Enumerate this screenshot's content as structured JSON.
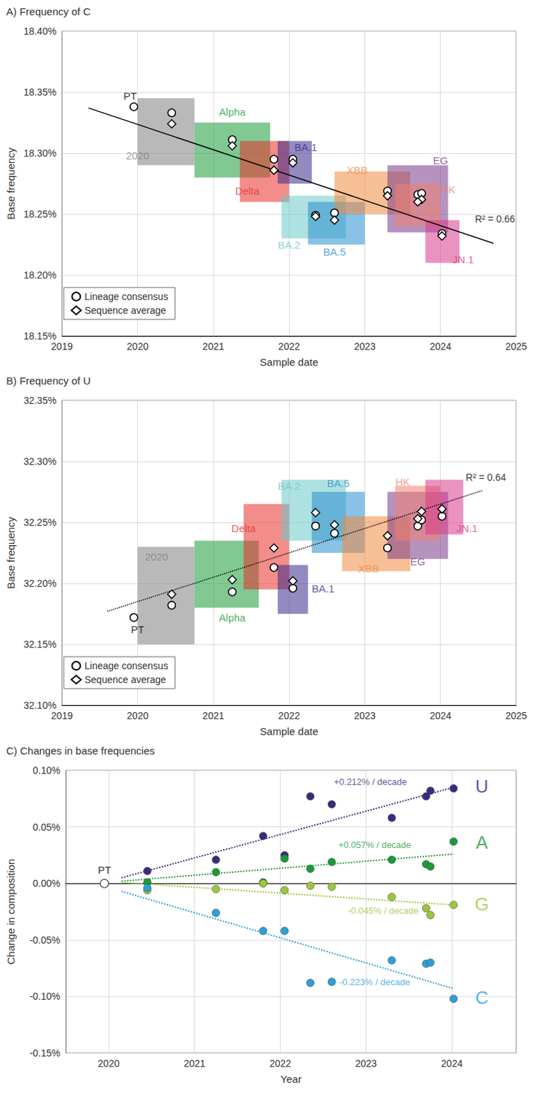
{
  "chart_data": [
    {
      "type": "scatter",
      "title": "A) Frequency of C",
      "x_label": "Sample date",
      "y_label": "Base frequency",
      "xlim": [
        2019,
        2025
      ],
      "xticks": [
        2019,
        2020,
        2021,
        2022,
        2023,
        2024,
        2025
      ],
      "ylim": [
        18.15,
        18.4
      ],
      "yticks": [
        {
          "value": 18.15,
          "label": "18.15%"
        },
        {
          "value": 18.2,
          "label": "18.20%"
        },
        {
          "value": 18.25,
          "label": "18.25%"
        },
        {
          "value": 18.3,
          "label": "18.30%"
        },
        {
          "value": 18.35,
          "label": "18.35%"
        },
        {
          "value": 18.4,
          "label": "18.40%"
        }
      ],
      "grid": true,
      "legend": "lower left",
      "series": [
        {
          "name": "Lineage consensus",
          "marker": "circle"
        },
        {
          "name": "Sequence average",
          "marker": "diamond"
        }
      ],
      "trend": {
        "line_style": "solid",
        "points": [
          [
            2019.35,
            18.337
          ],
          [
            2024.7,
            18.226
          ]
        ],
        "label": "R² = 0.66",
        "label_at": [
          2024.72,
          18.246
        ]
      },
      "lineages": [
        {
          "name": "PT",
          "color": "#000000",
          "consensus": [
            2019.95,
            18.338
          ],
          "label_at": [
            2019.9,
            18.347
          ]
        },
        {
          "name": "2020",
          "color": "#808080",
          "cloud": [
            2020.0,
            2020.75,
            18.29,
            18.345
          ],
          "consensus": [
            2020.45,
            18.333
          ],
          "average": [
            2020.45,
            18.324
          ],
          "label_at": [
            2020.0,
            18.298
          ]
        },
        {
          "name": "Alpha",
          "color": "#1a9a3a",
          "cloud": [
            2020.75,
            2021.75,
            18.28,
            18.325
          ],
          "consensus": [
            2021.25,
            18.311
          ],
          "average": [
            2021.25,
            18.306
          ],
          "label_at": [
            2021.25,
            18.334
          ]
        },
        {
          "name": "Delta",
          "color": "#e8302a",
          "cloud": [
            2021.35,
            2022.0,
            18.26,
            18.31
          ],
          "consensus": [
            2021.8,
            18.295
          ],
          "average": [
            2021.8,
            18.286
          ],
          "label_at": [
            2021.45,
            18.269
          ]
        },
        {
          "name": "BA.1",
          "color": "#3a2a8a",
          "cloud": [
            2021.85,
            2022.3,
            18.275,
            18.31
          ],
          "consensus": [
            2022.05,
            18.295
          ],
          "average": [
            2022.05,
            18.292
          ],
          "label_at": [
            2022.22,
            18.305
          ]
        },
        {
          "name": "BA.2",
          "color": "#6cc8c8",
          "cloud": [
            2021.9,
            2022.75,
            18.23,
            18.265
          ],
          "consensus": [
            2022.35,
            18.249
          ],
          "average": [
            2022.35,
            18.248
          ],
          "label_at": [
            2022.0,
            18.225
          ]
        },
        {
          "name": "BA.5",
          "color": "#2a90d0",
          "cloud": [
            2022.25,
            2023.0,
            18.225,
            18.26
          ],
          "consensus": [
            2022.6,
            18.251
          ],
          "average": [
            2022.6,
            18.245
          ],
          "label_at": [
            2022.6,
            18.219
          ]
        },
        {
          "name": "XBB",
          "color": "#f08a40",
          "cloud": [
            2022.6,
            2023.6,
            18.25,
            18.285
          ],
          "consensus": [
            2023.3,
            18.269
          ],
          "average": [
            2023.3,
            18.265
          ],
          "label_at": [
            2022.9,
            18.286
          ]
        },
        {
          "name": "EG",
          "color": "#7a3a8a",
          "cloud": [
            2023.3,
            2024.1,
            18.235,
            18.29
          ],
          "consensus": [
            2023.7,
            18.266
          ],
          "average": [
            2023.75,
            18.262
          ],
          "label_at": [
            2024.0,
            18.294
          ]
        },
        {
          "name": "HK",
          "color": "#f08070",
          "cloud": [
            2023.4,
            2024.0,
            18.24,
            18.275
          ],
          "consensus": [
            2023.75,
            18.267
          ],
          "average": [
            2023.7,
            18.26
          ],
          "label_at": [
            2024.1,
            18.27
          ]
        },
        {
          "name": "JN.1",
          "color": "#d83a8a",
          "cloud": [
            2023.8,
            2024.25,
            18.21,
            18.245
          ],
          "consensus": [
            2024.02,
            18.234
          ],
          "average": [
            2024.02,
            18.232
          ],
          "label_at": [
            2024.3,
            18.213
          ]
        }
      ]
    },
    {
      "type": "scatter",
      "title": "B) Frequency of U",
      "x_label": "Sample date",
      "y_label": "Base frequency",
      "xlim": [
        2019,
        2025
      ],
      "xticks": [
        2019,
        2020,
        2021,
        2022,
        2023,
        2024,
        2025
      ],
      "ylim": [
        32.1,
        32.35
      ],
      "yticks": [
        {
          "value": 32.1,
          "label": "32.10%"
        },
        {
          "value": 32.15,
          "label": "32.15%"
        },
        {
          "value": 32.2,
          "label": "32.20%"
        },
        {
          "value": 32.25,
          "label": "32.25%"
        },
        {
          "value": 32.3,
          "label": "32.30%"
        },
        {
          "value": 32.35,
          "label": "32.35%"
        }
      ],
      "grid": true,
      "legend": "lower left",
      "series": [
        {
          "name": "Lineage consensus",
          "marker": "circle"
        },
        {
          "name": "Sequence average",
          "marker": "diamond"
        }
      ],
      "trend": {
        "line_style": "dotted",
        "points": [
          [
            2019.6,
            32.177
          ],
          [
            2024.55,
            32.276
          ]
        ],
        "label": "R² = 0.64",
        "label_at": [
          2024.6,
          32.287
        ]
      },
      "lineages": [
        {
          "name": "PT",
          "color": "#000000",
          "consensus": [
            2019.95,
            32.172
          ],
          "label_at": [
            2020.0,
            32.162
          ]
        },
        {
          "name": "2020",
          "color": "#808080",
          "cloud": [
            2020.0,
            2020.75,
            32.15,
            32.23
          ],
          "consensus": [
            2020.45,
            32.182
          ],
          "average": [
            2020.45,
            32.191
          ],
          "label_at": [
            2020.25,
            32.222
          ]
        },
        {
          "name": "Alpha",
          "color": "#1a9a3a",
          "cloud": [
            2020.75,
            2021.6,
            32.18,
            32.235
          ],
          "consensus": [
            2021.25,
            32.193
          ],
          "average": [
            2021.25,
            32.203
          ],
          "label_at": [
            2021.25,
            32.172
          ]
        },
        {
          "name": "Delta",
          "color": "#e8302a",
          "cloud": [
            2021.4,
            2022.0,
            32.195,
            32.265
          ],
          "consensus": [
            2021.8,
            32.213
          ],
          "average": [
            2021.8,
            32.229
          ],
          "label_at": [
            2021.4,
            32.245
          ]
        },
        {
          "name": "BA.1",
          "color": "#3a2a8a",
          "cloud": [
            2021.85,
            2022.25,
            32.175,
            32.215
          ],
          "consensus": [
            2022.05,
            32.196
          ],
          "average": [
            2022.05,
            32.202
          ],
          "label_at": [
            2022.45,
            32.196
          ]
        },
        {
          "name": "BA.2",
          "color": "#6cc8c8",
          "cloud": [
            2021.9,
            2022.75,
            32.235,
            32.285
          ],
          "consensus": [
            2022.35,
            32.247
          ],
          "average": [
            2022.35,
            32.258
          ],
          "label_at": [
            2022.0,
            32.28
          ]
        },
        {
          "name": "BA.5",
          "color": "#2a90d0",
          "cloud": [
            2022.3,
            2023.0,
            32.225,
            32.275
          ],
          "consensus": [
            2022.6,
            32.241
          ],
          "average": [
            2022.6,
            32.248
          ],
          "label_at": [
            2022.65,
            32.282
          ]
        },
        {
          "name": "XBB",
          "color": "#f08a40",
          "cloud": [
            2022.7,
            2023.6,
            32.21,
            32.255
          ],
          "consensus": [
            2023.3,
            32.229
          ],
          "average": [
            2023.3,
            32.239
          ],
          "label_at": [
            2023.05,
            32.212
          ]
        },
        {
          "name": "EG",
          "color": "#7a3a8a",
          "cloud": [
            2023.3,
            2024.1,
            32.22,
            32.275
          ],
          "consensus": [
            2023.7,
            32.247
          ],
          "average": [
            2023.7,
            32.253
          ],
          "label_at": [
            2023.7,
            32.218
          ]
        },
        {
          "name": "HK",
          "color": "#f08070",
          "cloud": [
            2023.4,
            2024.0,
            32.235,
            32.28
          ],
          "consensus": [
            2023.75,
            32.252
          ],
          "average": [
            2023.75,
            32.259
          ],
          "label_at": [
            2023.5,
            32.283
          ]
        },
        {
          "name": "JN.1",
          "color": "#d83a8a",
          "cloud": [
            2023.8,
            2024.3,
            32.24,
            32.285
          ],
          "consensus": [
            2024.02,
            32.255
          ],
          "average": [
            2024.02,
            32.261
          ],
          "label_at": [
            2024.35,
            32.245
          ]
        }
      ]
    },
    {
      "type": "scatter",
      "title": "C) Changes in base frequencies",
      "x_label": "Year",
      "y_label": "Change in composition",
      "xlim": [
        2019.5,
        2024.75
      ],
      "xticks": [
        2020,
        2021,
        2022,
        2023,
        2024
      ],
      "ylim": [
        -0.15,
        0.1
      ],
      "yticks": [
        {
          "value": -0.15,
          "label": "-0.15%"
        },
        {
          "value": -0.1,
          "label": "-0.10%"
        },
        {
          "value": -0.05,
          "label": "-0.05%"
        },
        {
          "value": 0,
          "label": "0.00%"
        },
        {
          "value": 0.05,
          "label": "0.05%"
        },
        {
          "value": 0.1,
          "label": "0.10%"
        }
      ],
      "grid": true,
      "reference": {
        "name": "PT",
        "x": 2019.95,
        "value": 0
      },
      "x": [
        2020.45,
        2021.25,
        2021.8,
        2022.05,
        2022.35,
        2022.6,
        2023.3,
        2023.7,
        2023.75,
        2024.02
      ],
      "series": [
        {
          "name": "U",
          "color": "#3b2a80",
          "values": [
            0.011,
            0.021,
            0.042,
            0.025,
            0.077,
            0.07,
            0.058,
            0.077,
            0.082,
            0.084
          ],
          "trend": {
            "line_style": "dotted",
            "points": [
              [
                2020.15,
                0.005
              ],
              [
                2024.02,
                0.085
              ]
            ],
            "label": "+0.212% / decade",
            "label_at": [
              2023.05,
              0.09
            ]
          },
          "label_at": [
            2024.35,
            0.086
          ]
        },
        {
          "name": "A",
          "color": "#1a9a3a",
          "values": [
            0.001,
            0.01,
            0.001,
            0.022,
            0.013,
            0.019,
            0.021,
            0.017,
            0.015,
            0.037
          ],
          "trend": {
            "line_style": "dotted",
            "points": [
              [
                2020.15,
                0.002
              ],
              [
                2024.02,
                0.026
              ]
            ],
            "label": "+0.057% / decade",
            "label_at": [
              2023.1,
              0.034
            ]
          },
          "label_at": [
            2024.35,
            0.036
          ]
        },
        {
          "name": "G",
          "color": "#9ac83a",
          "values": [
            -0.006,
            -0.005,
            0.0,
            -0.006,
            -0.002,
            -0.003,
            -0.012,
            -0.022,
            -0.028,
            -0.019
          ],
          "trend": {
            "line_style": "dotted",
            "points": [
              [
                2020.15,
                0.001
              ],
              [
                2024.02,
                -0.019
              ]
            ],
            "label": "-0.045% / decade",
            "label_at": [
              2023.2,
              -0.024
            ]
          },
          "label_at": [
            2024.35,
            -0.018
          ]
        },
        {
          "name": "C",
          "color": "#2aa0d8",
          "values": [
            -0.004,
            -0.026,
            -0.042,
            -0.042,
            -0.088,
            -0.087,
            -0.068,
            -0.071,
            -0.07,
            -0.102
          ],
          "trend": {
            "line_style": "dotted",
            "points": [
              [
                2020.15,
                -0.007
              ],
              [
                2024.02,
                -0.093
              ]
            ],
            "label": "-0.223% / decade",
            "label_at": [
              2023.1,
              -0.087
            ]
          },
          "label_at": [
            2024.35,
            -0.101
          ]
        }
      ]
    }
  ]
}
